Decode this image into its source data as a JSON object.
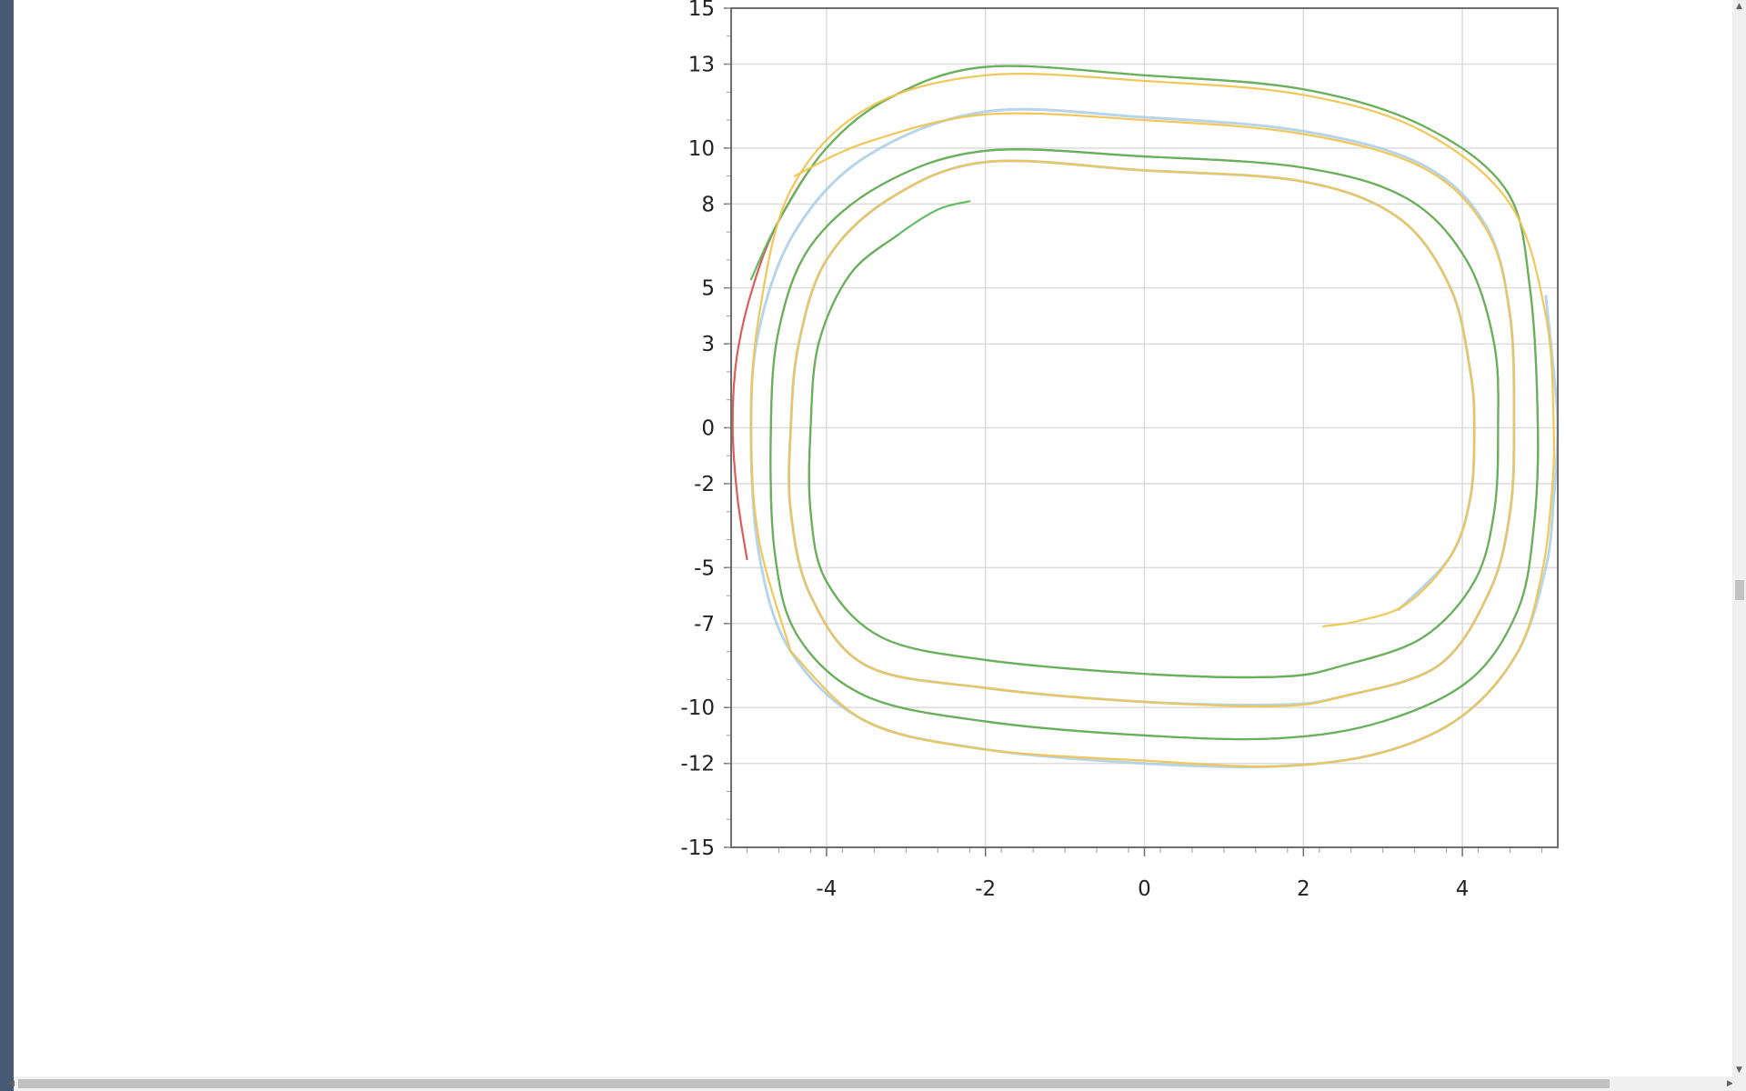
{
  "scrollbars": {
    "up_arrow": "▲",
    "down_arrow": "▼",
    "left_arrow": "◀",
    "right_arrow": "▶"
  },
  "colors": {
    "left_bar": "#475a74",
    "grid": "#dcdcdc",
    "frame": "#6e6e6e",
    "red": "#d9534f",
    "green": "#5cb85c",
    "yellow": "#f0c450",
    "blue": "#a9cde6"
  },
  "chart_data": {
    "type": "line",
    "title": "",
    "xlabel": "",
    "ylabel": "",
    "xlim": [
      -5.2,
      5.2
    ],
    "ylim": [
      -15,
      15
    ],
    "grid": true,
    "legend": "none",
    "x_ticks": [
      -4,
      -2,
      0,
      2,
      4
    ],
    "y_ticks": [
      15,
      13,
      10,
      8,
      5,
      3,
      0,
      -2,
      -5,
      -7,
      -10,
      -12,
      -15
    ],
    "series": [
      {
        "color_key": "red",
        "points": [
          [
            -5.0,
            -4.7
          ],
          [
            -5.12,
            -2.5
          ],
          [
            -5.18,
            0.0
          ],
          [
            -5.13,
            2.5
          ],
          [
            -4.93,
            5.0
          ],
          [
            -4.6,
            7.4
          ],
          [
            -4.0,
            10.0
          ],
          [
            -3.2,
            11.8
          ],
          [
            -2.0,
            12.9
          ],
          [
            0.0,
            12.6
          ],
          [
            2.0,
            12.1
          ],
          [
            3.5,
            10.8
          ],
          [
            4.55,
            8.5
          ],
          [
            4.85,
            5.0
          ],
          [
            4.95,
            0.0
          ],
          [
            4.9,
            -3.5
          ],
          [
            4.7,
            -6.5
          ],
          [
            4.1,
            -9.0
          ],
          [
            3.0,
            -10.5
          ],
          [
            1.7,
            -11.1
          ],
          [
            0.0,
            -11.0
          ],
          [
            -2.0,
            -10.5
          ],
          [
            -3.5,
            -9.6
          ],
          [
            -4.35,
            -7.5
          ],
          [
            -4.65,
            -4.5
          ],
          [
            -4.7,
            0.0
          ],
          [
            -4.6,
            3.5
          ],
          [
            -4.2,
            6.5
          ],
          [
            -3.3,
            8.7
          ],
          [
            -2.0,
            9.9
          ],
          [
            0.0,
            9.7
          ],
          [
            2.0,
            9.3
          ],
          [
            3.3,
            8.2
          ],
          [
            4.05,
            6.0
          ],
          [
            4.4,
            3.0
          ],
          [
            4.45,
            0.0
          ],
          [
            4.4,
            -3.0
          ],
          [
            4.15,
            -5.5
          ],
          [
            3.5,
            -7.5
          ],
          [
            2.5,
            -8.5
          ],
          [
            1.7,
            -8.9
          ],
          [
            0.0,
            -8.8
          ],
          [
            -2.0,
            -8.3
          ],
          [
            -3.3,
            -7.5
          ],
          [
            -4.0,
            -5.5
          ],
          [
            -4.2,
            -3.0
          ],
          [
            -4.2,
            0.0
          ],
          [
            -4.1,
            3.0
          ],
          [
            -3.7,
            5.5
          ],
          [
            -3.1,
            6.9
          ]
        ]
      },
      {
        "color_key": "green",
        "points": [
          [
            -4.95,
            5.3
          ],
          [
            -4.6,
            7.4
          ],
          [
            -4.0,
            10.0
          ],
          [
            -3.2,
            11.8
          ],
          [
            -2.0,
            12.9
          ],
          [
            0.0,
            12.6
          ],
          [
            2.0,
            12.1
          ],
          [
            3.5,
            10.8
          ],
          [
            4.55,
            8.5
          ],
          [
            4.85,
            5.0
          ],
          [
            4.95,
            0.0
          ],
          [
            4.9,
            -3.5
          ],
          [
            4.7,
            -6.5
          ],
          [
            4.1,
            -9.0
          ],
          [
            3.0,
            -10.5
          ],
          [
            1.7,
            -11.1
          ],
          [
            0.0,
            -11.0
          ],
          [
            -2.0,
            -10.5
          ],
          [
            -3.5,
            -9.6
          ],
          [
            -4.35,
            -7.5
          ],
          [
            -4.65,
            -4.5
          ],
          [
            -4.7,
            0.0
          ],
          [
            -4.6,
            3.5
          ],
          [
            -4.2,
            6.5
          ],
          [
            -3.3,
            8.7
          ],
          [
            -2.0,
            9.9
          ],
          [
            0.0,
            9.7
          ],
          [
            2.0,
            9.3
          ],
          [
            3.3,
            8.2
          ],
          [
            4.05,
            6.0
          ],
          [
            4.4,
            3.0
          ],
          [
            4.45,
            0.0
          ],
          [
            4.4,
            -3.0
          ],
          [
            4.15,
            -5.5
          ],
          [
            3.5,
            -7.5
          ],
          [
            2.5,
            -8.5
          ],
          [
            1.7,
            -8.9
          ],
          [
            0.0,
            -8.8
          ],
          [
            -2.0,
            -8.3
          ],
          [
            -3.3,
            -7.5
          ],
          [
            -4.0,
            -5.5
          ],
          [
            -4.2,
            -3.0
          ],
          [
            -4.2,
            0.0
          ],
          [
            -4.1,
            3.0
          ],
          [
            -3.7,
            5.5
          ],
          [
            -3.1,
            6.9
          ],
          [
            -2.6,
            7.8
          ],
          [
            -2.2,
            8.1
          ]
        ]
      },
      {
        "color_key": "blue",
        "points": [
          [
            5.05,
            4.7
          ],
          [
            5.15,
            2.0
          ],
          [
            5.2,
            0.0
          ],
          [
            5.15,
            -2.5
          ],
          [
            5.05,
            -5.0
          ],
          [
            4.7,
            -8.0
          ],
          [
            4.0,
            -10.3
          ],
          [
            3.0,
            -11.6
          ],
          [
            1.7,
            -12.1
          ],
          [
            0.0,
            -12.0
          ],
          [
            -2.0,
            -11.5
          ],
          [
            -3.5,
            -10.5
          ],
          [
            -4.45,
            -8.0
          ],
          [
            -4.85,
            -4.5
          ],
          [
            -4.95,
            0.0
          ],
          [
            -4.85,
            3.5
          ],
          [
            -4.4,
            7.0
          ],
          [
            -3.5,
            9.7
          ],
          [
            -2.0,
            11.3
          ],
          [
            0.0,
            11.1
          ],
          [
            2.0,
            10.6
          ],
          [
            3.5,
            9.4
          ],
          [
            4.3,
            7.2
          ],
          [
            4.6,
            4.0
          ],
          [
            4.65,
            0.0
          ],
          [
            4.6,
            -3.0
          ],
          [
            4.35,
            -5.8
          ],
          [
            3.7,
            -8.5
          ],
          [
            2.5,
            -9.6
          ],
          [
            1.7,
            -9.9
          ],
          [
            0.0,
            -9.8
          ],
          [
            -2.0,
            -9.3
          ],
          [
            -3.5,
            -8.5
          ],
          [
            -4.2,
            -6.0
          ],
          [
            -4.45,
            -3.0
          ],
          [
            -4.45,
            0.0
          ],
          [
            -4.35,
            3.0
          ],
          [
            -4.0,
            6.0
          ],
          [
            -3.2,
            8.2
          ],
          [
            -2.0,
            9.5
          ],
          [
            0.0,
            9.2
          ],
          [
            2.0,
            8.8
          ],
          [
            3.2,
            7.5
          ],
          [
            3.85,
            5.0
          ],
          [
            4.1,
            2.0
          ],
          [
            4.15,
            0.0
          ],
          [
            4.1,
            -2.5
          ],
          [
            3.85,
            -4.6
          ],
          [
            3.2,
            -6.5
          ]
        ]
      },
      {
        "color_key": "yellow",
        "points": [
          [
            -4.4,
            9.0
          ],
          [
            -3.5,
            10.2
          ],
          [
            -2.0,
            11.2
          ],
          [
            0.0,
            11.0
          ],
          [
            2.0,
            10.5
          ],
          [
            3.5,
            9.3
          ],
          [
            4.3,
            7.1
          ],
          [
            4.6,
            4.0
          ],
          [
            4.65,
            0.0
          ],
          [
            4.6,
            -3.0
          ],
          [
            4.35,
            -5.8
          ],
          [
            3.7,
            -8.5
          ],
          [
            2.5,
            -9.6
          ],
          [
            1.7,
            -9.95
          ],
          [
            0.0,
            -9.8
          ],
          [
            -2.0,
            -9.3
          ],
          [
            -3.5,
            -8.5
          ],
          [
            -4.2,
            -6.0
          ],
          [
            -4.45,
            -3.0
          ],
          [
            -4.45,
            0.0
          ],
          [
            -4.35,
            3.0
          ],
          [
            -4.0,
            6.0
          ],
          [
            -3.2,
            8.2
          ],
          [
            -2.0,
            9.5
          ],
          [
            0.0,
            9.2
          ],
          [
            2.0,
            8.8
          ],
          [
            3.2,
            7.5
          ],
          [
            3.85,
            5.0
          ],
          [
            4.1,
            2.0
          ],
          [
            4.15,
            0.0
          ],
          [
            4.1,
            -2.5
          ],
          [
            3.85,
            -4.6
          ],
          [
            3.3,
            -6.3
          ],
          [
            2.7,
            -6.9
          ],
          [
            2.25,
            -7.1
          ]
        ]
      },
      {
        "color_key": "yellow",
        "points": [
          [
            -4.45,
            -8.0
          ],
          [
            -3.5,
            -10.5
          ],
          [
            -2.0,
            -11.5
          ],
          [
            0.0,
            -11.9
          ],
          [
            1.7,
            -12.1
          ],
          [
            3.0,
            -11.6
          ],
          [
            4.0,
            -10.3
          ],
          [
            4.7,
            -8.0
          ],
          [
            5.0,
            -5.2
          ],
          [
            5.12,
            -2.5
          ],
          [
            5.15,
            0.0
          ],
          [
            5.05,
            4.0
          ],
          [
            4.6,
            8.0
          ],
          [
            3.5,
            10.6
          ],
          [
            2.0,
            11.9
          ],
          [
            0.0,
            12.4
          ],
          [
            -2.0,
            12.6
          ],
          [
            -3.5,
            11.4
          ],
          [
            -4.45,
            8.5
          ],
          [
            -4.85,
            4.0
          ],
          [
            -4.95,
            0.0
          ],
          [
            -4.85,
            -4.0
          ],
          [
            -4.45,
            -8.0
          ]
        ]
      }
    ]
  }
}
